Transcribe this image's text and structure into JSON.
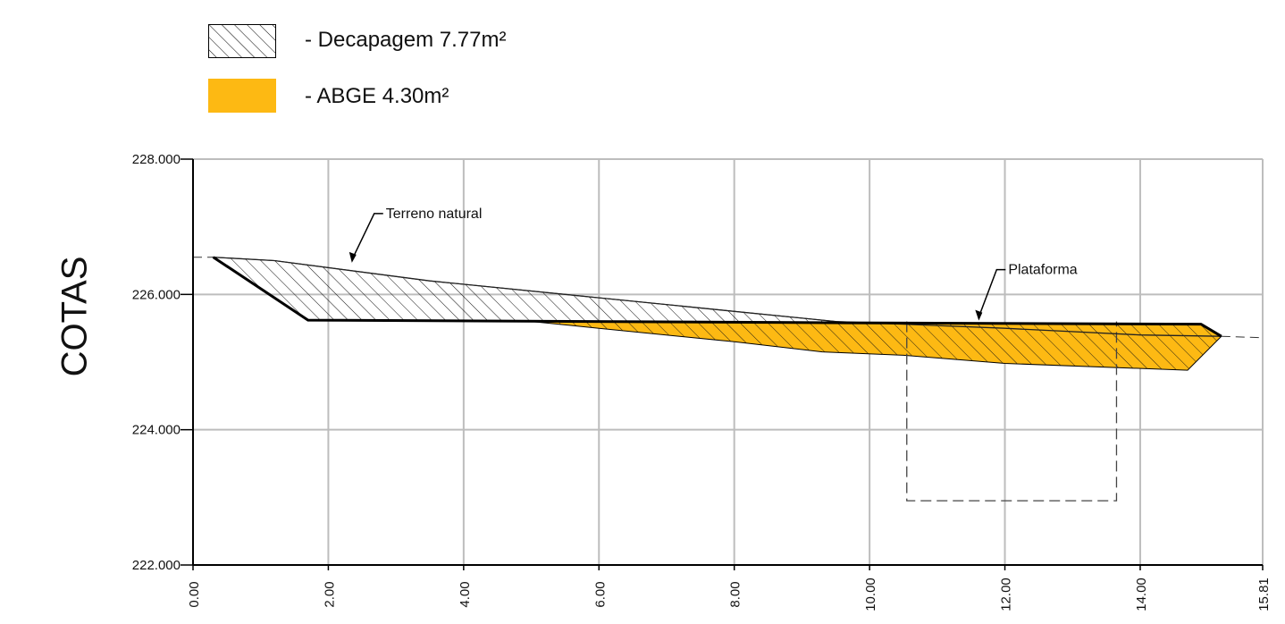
{
  "legend": {
    "items": [
      {
        "label": "- Decapagem 7.77m²",
        "pattern": "hatch"
      },
      {
        "label": "- ABGE 4.30m²",
        "pattern": "solid"
      }
    ]
  },
  "colors": {
    "abge_fill": "#FDB913",
    "grid": "#BDBDBD",
    "line": "#000000"
  },
  "chart_data": {
    "type": "area",
    "title": "",
    "ylabel": "COTAS",
    "xlabel": "",
    "xlim": [
      0,
      15.81
    ],
    "ylim": [
      222,
      228
    ],
    "xticks": [
      {
        "value": 0,
        "label": "0.00"
      },
      {
        "value": 2,
        "label": "2.00"
      },
      {
        "value": 4,
        "label": "4.00"
      },
      {
        "value": 6,
        "label": "6.00"
      },
      {
        "value": 8,
        "label": "8.00"
      },
      {
        "value": 10,
        "label": "10.00"
      },
      {
        "value": 12,
        "label": "12.00"
      },
      {
        "value": 14,
        "label": "14.00"
      },
      {
        "value": 15.81,
        "label": "15.81"
      }
    ],
    "yticks": [
      {
        "value": 228,
        "label": "228.000"
      },
      {
        "value": 226,
        "label": "226.000"
      },
      {
        "value": 224,
        "label": "224.000"
      },
      {
        "value": 222,
        "label": "222.000"
      }
    ],
    "grid": true,
    "series": [
      {
        "name": "Terreno natural",
        "points": [
          [
            0,
            226.55
          ],
          [
            0.3,
            226.55
          ],
          [
            1.2,
            226.5
          ],
          [
            3.5,
            226.2
          ],
          [
            6,
            225.95
          ],
          [
            8,
            225.75
          ],
          [
            9.5,
            225.6
          ],
          [
            12,
            225.5
          ],
          [
            14,
            225.4
          ],
          [
            15.2,
            225.38
          ],
          [
            15.81,
            225.36
          ]
        ]
      },
      {
        "name": "Plataforma",
        "points": [
          [
            0.3,
            226.55
          ],
          [
            1.7,
            225.62
          ],
          [
            9.7,
            225.58
          ],
          [
            14.9,
            225.56
          ],
          [
            15.2,
            225.38
          ]
        ]
      }
    ],
    "areas": [
      {
        "name": "Decapagem",
        "value": "7.77m²",
        "polygon": [
          [
            0.3,
            226.55
          ],
          [
            1.2,
            226.5
          ],
          [
            3.5,
            226.2
          ],
          [
            6,
            225.95
          ],
          [
            8,
            225.75
          ],
          [
            9.5,
            225.6
          ],
          [
            9.7,
            225.58
          ],
          [
            5.5,
            225.6
          ],
          [
            1.7,
            225.62
          ]
        ]
      },
      {
        "name": "ABGE",
        "value": "4.30m²",
        "polygon": [
          [
            5.0,
            225.6
          ],
          [
            9.7,
            225.58
          ],
          [
            14.9,
            225.56
          ],
          [
            15.2,
            225.38
          ],
          [
            14.7,
            224.88
          ],
          [
            12,
            224.98
          ],
          [
            10.5,
            225.1
          ],
          [
            9.3,
            225.15
          ],
          [
            8,
            225.3
          ],
          [
            6,
            225.5
          ],
          [
            5.0,
            225.6
          ]
        ]
      }
    ],
    "dashed_box": {
      "x": [
        10.55,
        13.65
      ],
      "y": [
        222.95,
        225.6
      ]
    },
    "annotations": [
      {
        "text": "Terreno natural",
        "x": 2.85,
        "y": 227.13
      },
      {
        "text": "Plataforma",
        "x": 12.05,
        "y": 226.3
      }
    ]
  }
}
